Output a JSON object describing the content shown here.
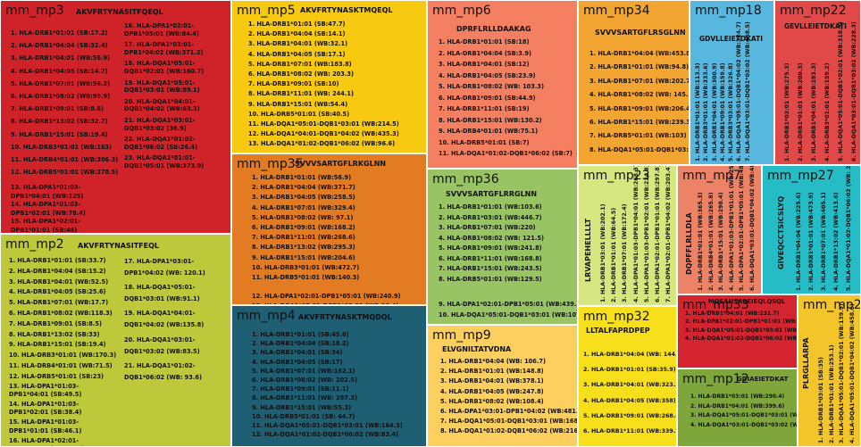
{
  "tiles": {
    "mp3": {
      "name": "mm_mp3",
      "peptide": "AKVFRTYNASITFQEQL",
      "color": "#cf2229",
      "alleles": [
        "1. HLA-DRB1*01:01 (SB:17.2)",
        "2. HLA-DRB1*04:04 (SB:32.4)",
        "3. HLA-DRB1*04:01 (WB:56.9)",
        "4. HLA-DRB1*04:05 (SB:14.7)",
        "5. HLA-DRB1*07:01 (WB:56.2)",
        "6. HLA-DRB1*08:02 (WB:99.9)",
        "7. HLA-DRB1*09:01 (SB:8.6)",
        "8. HLA-DRB1*13:02 (SB:32.7)",
        "9. HLA-DRB1*15:01 (SB:19.4)",
        "10. HLA-DRB3*01:01 (WB:163)",
        "11. HLA-DRB4*01:01 (WB:306.3)",
        "12. HLA-DRB5*01:01 (WB:278.5)",
        "13. HLA-DPA1*01:03-DPB1*04:01 (WB:125)",
        "14. HLA-DPA1*01:03-DPB1*02:01 (WB:78.4)",
        "15. HLA-DPA1*02:01-DPB1*01:01 (SB:46)"
      ],
      "alleles2": [
        "16. HLA-DPA1*02:01-DPB1*05:01 (WB:84.4)",
        "17. HLA-DPA1*03:01-DPB1*04:02 (WB:371.2)",
        "18. HLA-DQA1*05:01-DQB1*02:01 (WB:160.7)",
        "19. HLA-DQA1*05:01-DQB1*03:01 (WB:89.1)",
        "20. HLA-DQA1*04:01-DQB1*04:02 (WB:63.3)",
        "21. HLA-DQA1*03:01-DQB1*03:02 (36.9)",
        "22. HLA-DQA1*01:02-DQB1*06:02 (SB:26.4)",
        "23. HLA-DQA1*01:01-DQB1*05:01 (WB:373.9)"
      ]
    },
    "mp2": {
      "name": "mm_mp2",
      "peptide": "AKVFRTYNASITFEQL",
      "color": "#bdc83a",
      "alleles": [
        "1. HLA-DRB1*01:01 (SB:33.7)",
        "2. HLA-DRB1*04:04 (SB:15.2)",
        "3. HLA-DRB1*04:01 (WB:52.5)",
        "4. HLA-DRB1*04:05 (SB:25.6)",
        "5. HLA-DRB1*07:01 (WB:17.7)",
        "6. HLA-DRB1*08:02 (WB:118.3)",
        "7. HLA-DRB1*09:01 (SB:8.5)",
        "8. HLA-DRB1*13:02 (SB:33)",
        "9. HLA-DRB1*15:01 (SB:19.4)",
        "10. HLA-DRB3*01:01 (WB:170.3)",
        "11. HLA-DRB4*01:01 (WB:71.5)",
        "12. HLA-DRB5*01:01 (SB:23)",
        "13. HLA-DPA1*01:03-DPB1*04:01 (SB:49.5)",
        "14. HLA-DPA1*01:03-DPB1*02:01 (SB:38.4)",
        "15. HLA-DPA1*01:03-DPB1*01:01 (SB:46.1)",
        "16. HLA-DPA1*02:01-DPB1*05:01 (WB:50.9)"
      ],
      "alleles2": [
        "17. HLA-DPA1*03:01-DPB1*04:02 (WB: 120.1)",
        "18. HLA-DQA1*05:01-DQB1*03:01 (WB:91.1)",
        "19. HLA-DQA1*04:01-DQB1*04:02 (WB:135.8)",
        "20. HLA-DQA1*03:01-DQB1*03:02 (WB:83.5)",
        "21. HLA-DQA1*01:02-DQB1*06:02 (WB: 93.6)"
      ]
    },
    "mp5": {
      "name": "mm_mp5",
      "peptide": "AKVFRTYNASKTMQEQL",
      "color": "#f8c911",
      "alleles": [
        "1. HLA-DRB1*01:01 (SB:47.7)",
        "2. HLA-DRB1*04:04 (SB:14.1)",
        "3. HLA-DRB1*04:01 (WB:32.1)",
        "4. HLA-DRB1*04:05 (SB:17.1)",
        "5. HLA-DRB1*07:01 (WB:183.8)",
        "6. HLA-DRB1*08:02 (WB: 203.3)",
        "7. HLA-DRB1*09:01 (SB:10)",
        "8. HLA-DRB1*11:01 (WB: 244.1)",
        "9. HLA-DRB1*15:01 (WB:54.4)",
        "10. HLA-DRB5*01:01 (SB:40.5)",
        "11. HLA-DQA1*05:01-DQB1*03:01 (WB:214.5)",
        "12. HLA-DQA1*04:01-DQB1*04:02 (WB:435.3)",
        "13. HLA-DQA1*01:02-DQB1*06:02 (WB:96.6)"
      ]
    },
    "mp35": {
      "name": "mm_mp35",
      "peptide": "SVVVSARTGFLRKGLNN",
      "color": "#e37b22",
      "alleles": [
        "1. HLA-DRB1*01:01 (WB:56.9)",
        "2. HLA-DRB1*04:04 (WB:371.7)",
        "3. HLA-DRB1*04:05 (WB:258.5)",
        "4. HLA-DRB1*07:01 (WB:329.4)",
        "5. HLA-DRB1*08:02 (WB: 97.1)",
        "6. HLA-DRB1*09:01 (WB:168.2)",
        "7. HLA-DRB1*11:01 (WB:268.6)",
        "8. HLA-DRB1*13:02 (WB:295.3)",
        "9. HLA-DRB1*15:01 (WB:204.6)",
        "10. HLA-DRB3*01:01 (WB:472.7)",
        "11. HLA-DRB5*01:01 (WB:140.3)",
        "12. HLA-DPA1*02:01-DPB1*05:01 (WB:240.9)",
        "13. HLA-DQA1*05:01-DQB1*03:01 (WB:90.4)"
      ]
    },
    "mp4": {
      "name": "mm_mp4",
      "peptide": "AKVFRTYNASKTMQDQL",
      "color": "#1e5f73",
      "alleles": [
        "1. HLA-DRB1*01:01 (SB:45.6)",
        "2. HLA-DRB1*04:04 (SB:18.2)",
        "3. HLA-DRB1*04:01 (SB:34)",
        "4. HLA-DRB1*04:05 (SB:17)",
        "5. HLA-DRB1*07:01 (WB:162.1)",
        "6. HLA-DRB1*08:02 (WB: 202.5)",
        "7. HLA-DRB1*09:01 (SB:11.1)",
        "8. HLA-DRB1*11:01 (WB: 297.3)",
        "9. HLA-DRB1*15:01 (WB:55.3)",
        "10. HLA-DRB5*01:01 (SB: 44.7)",
        "11. HLA-DQA1*05:01-DQB1*03:01 (WB:164.3)",
        "12. HLA-DQA1*01:02-DQB1*06:02 (WB:83.4)"
      ]
    },
    "mp6": {
      "name": "mm_mp6",
      "peptide": "DPRFLRLLDAAKAG",
      "color": "#f47f61",
      "alleles": [
        "1. HLA-DRB1*01:01 (SB:18)",
        "2. HLA-DRB1*04:04 (SB:3.9)",
        "3. HLA-DRB1*04:01 (SB:12)",
        "4. HLA-DRB1*04:05 (SB:23.9)",
        "5. HLA-DRB1*08:02 (WB: 103.3)",
        "6. HLA-DRB1*09:01 (SB:44.9)",
        "7. HLA-DRB1*11:01 (SB:19)",
        "8. HLA-DRB1*15:01 (WB:130.2)",
        "9. HLA-DRB4*01:01 (WB:75.1)",
        "10. HLA-DRB5*01:01 (SB:7)",
        "11. HLA-DQA1*01:02-DQB1*06:02 (SB:7)"
      ]
    },
    "mp36": {
      "name": "mm_mp36",
      "peptide": "SVVVSARTGFLRRGLNN",
      "color": "#99c464",
      "alleles": [
        "1. HLA-DRB1*01:01 (WB:103.6)",
        "2. HLA-DRB1*03:01 (WB:446.7)",
        "3. HLA-DRB1*07:01 (WB:220)",
        "4. HLA-DRB1*08:02 (WB: 121.5)",
        "5. HLA-DRB1*09:01 (WB:241.8)",
        "6. HLA-DRB1*11:01 (WB:168.8)",
        "7. HLA-DRB1*15:01 (WB:243.5)",
        "8. HLA-DRB5*01:01 (WB:129.5)",
        "9. HLA-DPA1*02:01-DPB1*05:01 (WB:439.5)",
        "10. HLA-DQA1*05:01-DQB1*03:01 (WB:107)"
      ]
    },
    "mp9": {
      "name": "mm_mp9",
      "peptide": "ELVGNILTATVDNA",
      "color": "#fccf5e",
      "alleles": [
        "1. HLA-DRB1*04:04 (WB: 106.7)",
        "2. HLA-DRB1*01:01 (WB:148.8)",
        "3. HLA-DRB1*04:01 (WB:378.1)",
        "4. HLA-DRB1*04:05 (WB:247.8)",
        "5. HLA-DRB1*08:02 (WB:108.4)",
        "6. HLA-DPA1*03:01-DPB1*04:02 (WB:481.5)",
        "7. HLA-DQA1*05:01-DQB1*03:01 (WB:168.6)",
        "8. HLA-DQA1*01:02-DQB1*06:02 (WB:216.1)"
      ]
    },
    "mp34": {
      "name": "mm_mp34",
      "peptide": "SVVVSARTGFLRSGLNN",
      "color": "#f3a532",
      "alleles": [
        "1. HLA-DRB1*04:04 (WB:453.8)",
        "2. HLA-DRB1*01:01 (WB:94.8)",
        "3. HLA-DRB1*07:01 (WB:202.7)",
        "4. HLA-DRB1*08:02 (WB: 145.2)",
        "5. HLA-DRB1*09:01 (WB:206.4)",
        "6. HLA-DRB1*15:01 (WB:239.3)",
        "7. HLA-DRB5*01:01 (WB:103)",
        "8. HLA-DQA1*05:01-DQB1*03:01 (WB:83.5)"
      ]
    },
    "mp18": {
      "name": "mm_mp18",
      "peptide": "GDVLLEIETDKATI",
      "color": "#58b7de",
      "alleles": [
        "1. HLA-DRB1*01:01 (WB:113.3)",
        "2. HLA-DRB3*01:01 (WB:333.6)",
        "3. HLA-DRB1*04:01 (WB:300.9)",
        "4. HLA-DRB1*09:01 (WB:159.8)",
        "5. HLA-DRB3*03:01 (WB:326.8)",
        "6. HLA-DQA1*05:01-DQB1*04:02 (WB:324.7)",
        "7. HLA-DQA1*03:01-DQB1*03:02 (WB:458.5)"
      ]
    },
    "mp22": {
      "name": "mm_mp22",
      "peptide": "GEVLLEIETDKATI",
      "color": "#e14848",
      "alleles": [
        "1. HLA-DRB1*03:01 (WB:275.3)",
        "2. HLA-DRB1*01:01 (WB:200.3)",
        "3. HLA-DRB1*04:01 (WB:283.3)",
        "4. HLA-DRB3*01:01 (WB:159.2)",
        "5. HLA-DQA1*05:01-DQB1*02:01 (WB:318.3)",
        "6. HLA-DQA1*03:01-DQB1*03:02 (WB:228.3)"
      ]
    },
    "mp23": {
      "name": "mm_mp23",
      "peptide": "LRVAPEHELLLLT",
      "color": "#d7e77f",
      "alleles": [
        "1. HLA-DRB1*03:01 (WB:202.1)",
        "2. HLA-DRB1*01:01 (WB:64.5)",
        "3. HLA-DRB1*07:01 (WB:172.4)",
        "4. HLA-DPA1*01:03-DPB1*04:01 (WB:268.3)",
        "5. HLA-DPA1*01:03-DPB1*02:01 (WB:224.8)",
        "6. HLA-DPA1*02:01-DPB1*01:01 (WB:297.8)",
        "7. HLA-DPA1*02:01-DPB1*04:02 (WB:203.4)"
      ]
    },
    "mp7": {
      "name": "mm_mp7",
      "peptide": "DQPFFLRLLDLA",
      "color": "#ed8366",
      "alleles": [
        "1. HLA-DRB1*01:01 (WB:365.3)",
        "2. HLA-DRB4*01:01 (WB:265.8)",
        "3. HLA-DRB1*15:01 (WB:298.4)",
        "4. HLA-DPA1*01:03-DPB1*01:01 (WB:254.7)",
        "5. HLA-DPA1*02:01-DPB1*05:01 (WB:483.2)",
        "6. HLA-DQA1*03:01-DQB1*04:02 (WB:481.5)"
      ]
    },
    "mp27": {
      "name": "mm_mp27",
      "peptide": "GIVEQCCTSICSLYQ",
      "color": "#25bcc6",
      "alleles": [
        "1. HLA-DRB1*04:04 (WB:225.6)",
        "2. HLA-DRB1*01:01 (WB:473.9)",
        "3. HLA-DRB1*07:01 (WB:405.1)",
        "4. HLA-DRB1*13:02 (WB:413.6)",
        "5. HLA-DQA1*01:02-DQB1*06:02 (WB: 291.5)"
      ]
    },
    "mp32": {
      "name": "mm_mp32",
      "peptide": "LLTALFAPRDPEP",
      "color": "#f7e01b",
      "alleles": [
        "1. HLA-DRB1*04:04 (WB: 144.5)",
        "2. HLA-DRB1*01:01 (SB:35.9)",
        "3. HLA-DRB1*04:01 (WB:323.2)",
        "4. HLA-DRB1*04:05 (WB:358)",
        "5. HLA-DRB1*09:01 (WB:268.4)",
        "6. HLA-DRB1*11:01 (WB:339.5)"
      ]
    },
    "mp33": {
      "name": "mm_mp33",
      "peptide": "MQEAHSAREIEQLQSQL",
      "color": "#d42430",
      "alleles": [
        "1. HLA-DRB1*04:01 (WB:231.7)",
        "2. HLA-DPA1*02:01-DPB1*01:01 (WB:375.5)",
        "3. HLA-DQA1*05:01-DQB1*03:01 (WB:254.7)",
        "4. HLA-DQA1*01:02-DQB1*06:02 (WB:166.4)"
      ]
    },
    "mp12": {
      "name": "mm_mp12",
      "peptide": "GDIAEIETDKAT",
      "color": "#7ea63a",
      "alleles": [
        "1. HLA-DRB1*03:01 (WB:290.4)",
        "2. HLA-DRB1*04:01 (WB:399.6)",
        "3. HLA-DQA1*05:01-DQB1*03:01 (WB:473.1)",
        "4. HLA-DQA1*03:01-DQB1*03:02 (WB:264.8)"
      ]
    },
    "mp24": {
      "name": "mm_mp24",
      "peptide": "PLRGLLARPA",
      "color": "#f4c52b",
      "alleles": [
        "1. HLA-DRB1*03:01 (SB:35)",
        "2. HLA-DRB1*01:01 (WB:253.1)",
        "3. HLA-DQA1*05:01-DQB1*02:01 (WB:139.9)",
        "4. HLA-DQA1*05:01-DQB1*04:02 (WB:458.6)"
      ]
    }
  }
}
